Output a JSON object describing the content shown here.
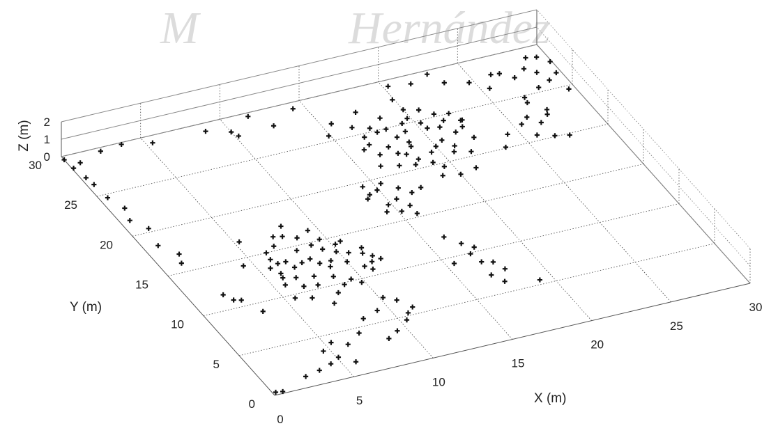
{
  "watermark": {
    "brand": "M",
    "text": "Hernández"
  },
  "chart_data": {
    "type": "scatter",
    "projection": "3d",
    "title": "",
    "xlabel": "X (m)",
    "ylabel": "Y (m)",
    "zlabel": "Z (m)",
    "xlim": [
      0,
      30
    ],
    "ylim": [
      0,
      30
    ],
    "zlim": [
      0,
      2
    ],
    "xticks": [
      "0",
      "5",
      "10",
      "15",
      "20",
      "25",
      "30"
    ],
    "yticks": [
      "0",
      "5",
      "10",
      "15",
      "20",
      "25",
      "30"
    ],
    "zticks": [
      "0",
      "1",
      "2"
    ],
    "grid": true,
    "marker": "+",
    "color": "#111111",
    "points": [
      [
        0.2,
        0.3,
        0
      ],
      [
        0.6,
        0.2,
        0
      ],
      [
        2.5,
        1.2,
        0
      ],
      [
        3.5,
        1.5,
        0
      ],
      [
        5.8,
        1.5,
        0
      ],
      [
        4.4,
        1.9,
        0
      ],
      [
        4.6,
        3.4,
        0
      ],
      [
        5.1,
        2.4,
        0
      ],
      [
        5.4,
        4.1,
        0
      ],
      [
        6.2,
        3.5,
        0
      ],
      [
        8.6,
        3.1,
        0
      ],
      [
        9.4,
        3.7,
        0
      ],
      [
        7.3,
        4.4,
        0
      ],
      [
        10.4,
        4.6,
        0
      ],
      [
        10.8,
        5.3,
        0
      ],
      [
        11.3,
        5.8,
        0
      ],
      [
        10.8,
        6.9,
        0
      ],
      [
        10.2,
        7.5,
        0
      ],
      [
        9.3,
        6.3,
        0
      ],
      [
        8.2,
        5.8,
        0
      ],
      [
        7.4,
        8.1,
        0
      ],
      [
        8.1,
        9.1,
        0
      ],
      [
        5.6,
        9.6,
        0
      ],
      [
        5.7,
        11.2,
        0
      ],
      [
        6.6,
        10.6,
        0
      ],
      [
        7.4,
        10.4,
        0
      ],
      [
        8.6,
        10.9,
        0
      ],
      [
        9.4,
        10.2,
        0
      ],
      [
        9.8,
        9.6,
        0
      ],
      [
        7.6,
        11.4,
        0
      ],
      [
        6.0,
        12.5,
        0
      ],
      [
        5.7,
        13.3,
        0
      ],
      [
        6.1,
        14.2,
        0
      ],
      [
        6.8,
        13.6,
        0
      ],
      [
        7.6,
        13.1,
        0
      ],
      [
        8.2,
        13.3,
        0
      ],
      [
        9.2,
        12.6,
        0
      ],
      [
        10.0,
        12.1,
        0
      ],
      [
        6.2,
        15.0,
        0
      ],
      [
        6.9,
        15.5,
        0
      ],
      [
        7.3,
        16.5,
        0
      ],
      [
        8.5,
        15.8,
        0
      ],
      [
        9.4,
        16.3,
        0
      ],
      [
        10.2,
        14.2,
        0
      ],
      [
        10.6,
        14.4,
        0
      ],
      [
        11.2,
        12.6,
        0
      ],
      [
        11.4,
        13.2,
        0
      ],
      [
        10.7,
        11.2,
        0
      ],
      [
        11.3,
        11.5,
        0
      ],
      [
        11.0,
        10.7,
        0
      ],
      [
        8.9,
        14.7,
        0
      ],
      [
        8.2,
        17.4,
        0
      ],
      [
        9.9,
        13.4,
        0
      ],
      [
        10.5,
        13.0,
        0
      ],
      [
        5.3,
        16.8,
        0
      ],
      [
        4.4,
        14.2,
        0
      ],
      [
        6.6,
        11.7,
        0
      ],
      [
        8.9,
        12.0,
        0
      ],
      [
        7.9,
        14.5,
        0
      ],
      [
        9.6,
        15.1,
        0
      ],
      [
        7.8,
        16.3,
        0
      ],
      [
        6.3,
        13.6,
        0
      ],
      [
        8.8,
        9.8,
        0
      ],
      [
        11.6,
        12.1,
        0
      ],
      [
        11.9,
        11.6,
        0
      ],
      [
        6.5,
        9.2,
        0
      ],
      [
        7.0,
        12.8,
        0
      ],
      [
        9.3,
        14.0,
        0
      ],
      [
        8.5,
        12.6,
        0
      ],
      [
        5.9,
        12.0,
        0
      ],
      [
        17.0,
        8.8,
        0
      ],
      [
        17.6,
        8.5,
        0
      ],
      [
        16.9,
        7.2,
        0
      ],
      [
        17.9,
        7.5,
        0
      ],
      [
        17.3,
        6.2,
        0
      ],
      [
        19.2,
        5.5,
        0
      ],
      [
        15.5,
        9.3,
        0
      ],
      [
        16.8,
        9.9,
        0
      ],
      [
        17.3,
        10.5,
        0
      ],
      [
        16.8,
        11.2,
        0
      ],
      [
        16.2,
        12.3,
        0
      ],
      [
        15.9,
        15.4,
        0
      ],
      [
        14.0,
        18.1,
        0
      ],
      [
        14.3,
        18.5,
        0
      ],
      [
        14.9,
        18.8,
        0
      ],
      [
        14.3,
        19.5,
        0
      ],
      [
        15.4,
        19.4,
        0
      ],
      [
        15.5,
        17.4,
        0
      ],
      [
        14.8,
        17.0,
        0
      ],
      [
        14.4,
        16.3,
        0
      ],
      [
        15.9,
        16.4,
        0
      ],
      [
        16.6,
        17.7,
        0
      ],
      [
        17.3,
        18.0,
        0
      ],
      [
        16.1,
        18.5,
        0
      ],
      [
        15.2,
        16.0,
        0
      ],
      [
        18.1,
        20.5,
        0
      ],
      [
        18.1,
        21.8,
        0
      ],
      [
        16.7,
        22.4,
        0
      ],
      [
        16.6,
        23.7,
        0
      ],
      [
        16.1,
        23.3,
        0
      ],
      [
        17.6,
        24.8,
        0
      ],
      [
        18.2,
        24.9,
        0
      ],
      [
        18.4,
        23.8,
        0
      ],
      [
        20.3,
        24.7,
        0
      ],
      [
        20.4,
        24.0,
        0
      ],
      [
        21.1,
        23.8,
        0
      ],
      [
        21.7,
        22.9,
        0
      ],
      [
        22.3,
        23.3,
        0
      ],
      [
        21.6,
        20.5,
        0
      ],
      [
        21.1,
        18.7,
        0
      ],
      [
        19.1,
        24.2,
        0
      ],
      [
        20.0,
        21.9,
        0
      ],
      [
        19.5,
        21.4,
        0
      ],
      [
        20.6,
        22.4,
        0
      ],
      [
        21.4,
        25.3,
        0
      ],
      [
        19.3,
        25.1,
        0
      ],
      [
        18.7,
        22.5,
        0
      ],
      [
        17.5,
        23.0,
        0
      ],
      [
        16.7,
        24.6,
        0
      ],
      [
        17.7,
        22.1,
        0
      ],
      [
        19.5,
        19.6,
        0
      ],
      [
        19.0,
        18.7,
        0
      ],
      [
        19.8,
        25.5,
        0
      ],
      [
        21.0,
        21.5,
        0
      ],
      [
        18.5,
        21.0,
        0
      ],
      [
        20.7,
        20.9,
        0
      ],
      [
        17.2,
        20.8,
        0
      ],
      [
        16.2,
        21.2,
        0
      ],
      [
        22.4,
        21.9,
        0
      ],
      [
        18.8,
        23.0,
        0
      ],
      [
        20.0,
        18.4,
        0
      ],
      [
        20.8,
        26.1,
        0
      ],
      [
        20.0,
        26.5,
        0
      ],
      [
        18.4,
        26.2,
        0
      ],
      [
        17.4,
        25.4,
        0
      ],
      [
        16.5,
        25.9,
        0
      ],
      [
        22.2,
        25.0,
        0
      ],
      [
        22.6,
        24.0,
        0
      ],
      [
        21.6,
        24.4,
        0
      ],
      [
        19.1,
        20.3,
        0
      ],
      [
        23.6,
        20.1,
        0
      ],
      [
        24.3,
        21.4,
        0
      ],
      [
        25.8,
        20.6,
        0
      ],
      [
        25.5,
        22.1,
        0
      ],
      [
        26.7,
        20.1,
        0
      ],
      [
        26.6,
        21.8,
        0
      ],
      [
        27.5,
        23.0,
        0
      ],
      [
        27.3,
        22.5,
        0
      ],
      [
        26.9,
        24.8,
        0
      ],
      [
        26.8,
        24.2,
        0
      ],
      [
        27.3,
        27.1,
        0
      ],
      [
        28.1,
        25.5,
        0
      ],
      [
        28.7,
        27.1,
        0
      ],
      [
        29.0,
        26.0,
        0
      ],
      [
        29.7,
        26.6,
        0
      ],
      [
        29.6,
        24.6,
        0
      ],
      [
        29.9,
        27.9,
        0
      ],
      [
        29.4,
        28.7,
        0
      ],
      [
        28.8,
        28.9,
        0
      ],
      [
        28.2,
        27.8,
        0
      ],
      [
        12.5,
        28.0,
        0
      ],
      [
        14.3,
        29.3,
        0
      ],
      [
        15.6,
        26.8,
        0
      ],
      [
        14.9,
        25.6,
        0
      ],
      [
        17.4,
        27.4,
        0
      ],
      [
        19.9,
        27.8,
        0
      ],
      [
        21.6,
        29.0,
        0
      ],
      [
        22.9,
        29.6,
        0
      ],
      [
        20.3,
        29.3,
        0
      ],
      [
        23.4,
        28.3,
        0
      ],
      [
        24.7,
        27.7,
        0
      ],
      [
        25.5,
        26.6,
        0
      ],
      [
        26.7,
        27.9,
        0
      ],
      [
        26.2,
        28.0,
        0
      ],
      [
        8.7,
        29.1,
        0
      ],
      [
        3.7,
        29.8,
        0
      ],
      [
        10.0,
        28.4,
        0
      ],
      [
        10.2,
        27.8,
        0
      ],
      [
        2.3,
        29.6,
        0
      ],
      [
        5.4,
        29.2,
        0
      ],
      [
        11.6,
        29.6,
        0
      ],
      [
        22.5,
        24.0,
        0
      ],
      [
        26.1,
        22.7,
        0
      ],
      [
        27.5,
        19.8,
        0
      ],
      [
        0.6,
        21.7,
        0
      ],
      [
        1.2,
        20.4,
        0
      ],
      [
        0.9,
        23.1,
        0
      ],
      [
        0.4,
        26.3,
        0
      ],
      [
        0.3,
        27.2,
        0
      ],
      [
        0.5,
        24.6,
        0
      ],
      [
        0.0,
        29.6,
        0
      ],
      [
        0.1,
        28.5,
        0
      ],
      [
        0.7,
        28.9,
        0
      ],
      [
        2.3,
        10.9,
        0
      ],
      [
        2.0,
        11.7,
        0
      ],
      [
        2.7,
        10.7,
        0
      ],
      [
        3.3,
        9.0,
        0
      ],
      [
        1.6,
        17.0,
        0
      ],
      [
        1.3,
        16.0,
        0
      ],
      [
        0.9,
        18.4,
        0
      ]
    ]
  }
}
